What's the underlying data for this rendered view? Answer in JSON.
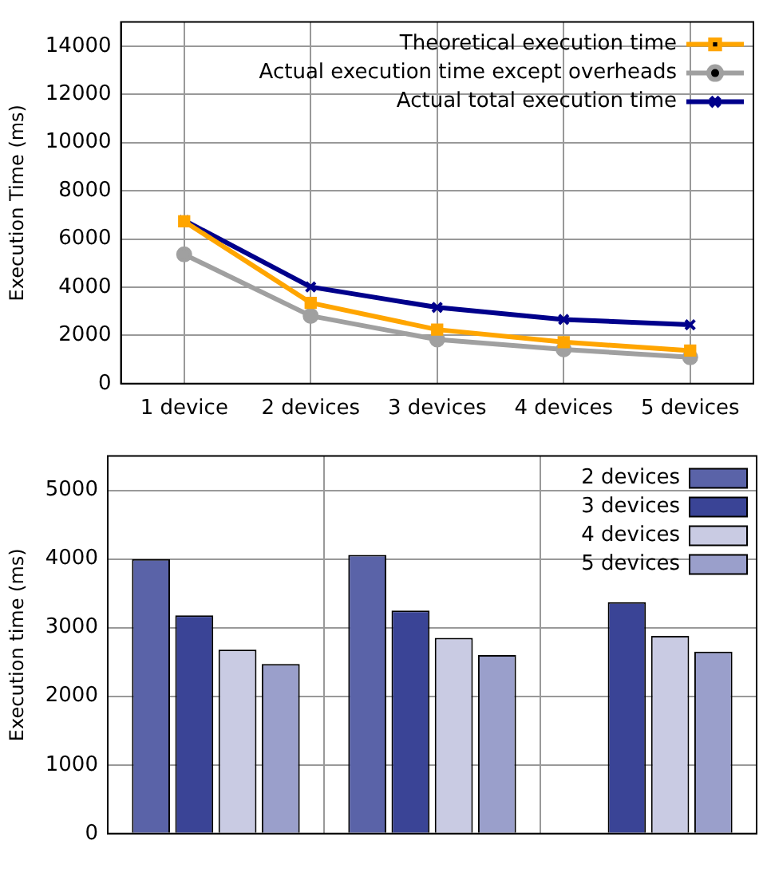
{
  "chart_data": [
    {
      "type": "line",
      "ylabel": "Execution Time (ms)",
      "categories": [
        "1 device",
        "2 devices",
        "3 devices",
        "4 devices",
        "5 devices"
      ],
      "ylim": [
        0,
        15000
      ],
      "yticks": [
        0,
        2000,
        4000,
        6000,
        8000,
        10000,
        12000,
        14000
      ],
      "grid": true,
      "legend": "top right",
      "line_style": "solid",
      "series": [
        {
          "name": "Theoretical execution time",
          "color": "#ffa500",
          "marker": "square",
          "values": [
            6730,
            3350,
            2240,
            1720,
            1370
          ]
        },
        {
          "name": "Actual execution time except overheads",
          "color": "#a0a0a0",
          "marker": "circle",
          "values": [
            5360,
            2810,
            1830,
            1420,
            1090
          ]
        },
        {
          "name": "Actual total execution time",
          "color": "#00008b",
          "marker": "cross",
          "values": [
            6770,
            4010,
            3160,
            2660,
            2440
          ]
        }
      ]
    },
    {
      "type": "bar",
      "ylabel": "Execution time (ms)",
      "categories": [
        null,
        null,
        null
      ],
      "ylim": [
        0,
        5500
      ],
      "yticks": [
        0,
        1000,
        2000,
        3000,
        4000,
        5000
      ],
      "grid": true,
      "legend": "top right",
      "series": [
        {
          "name": "2 devices",
          "color": "#5a63a8",
          "values": [
            4000,
            4060,
            null
          ]
        },
        {
          "name": "3 devices",
          "color": "#3a4496",
          "values": [
            3180,
            3250,
            3370
          ]
        },
        {
          "name": "4 devices",
          "color": "#c9cbe3",
          "values": [
            2680,
            2850,
            2880
          ]
        },
        {
          "name": "5 devices",
          "color": "#9a9fcb",
          "values": [
            2470,
            2600,
            2650
          ]
        }
      ]
    }
  ]
}
